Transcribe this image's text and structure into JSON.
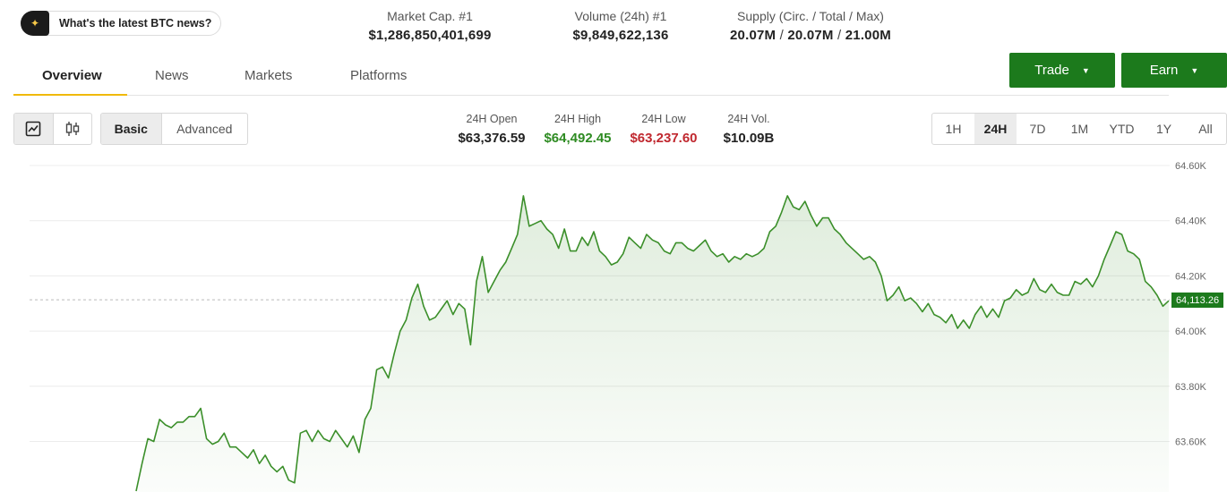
{
  "ai_prompt": {
    "icon": "sparkle-icon",
    "text": "What's the latest BTC news?"
  },
  "stats": [
    {
      "label": "Market Cap. #1",
      "value": "$1,286,850,401,699"
    },
    {
      "label": "Volume (24h) #1",
      "value": "$9,849,622,136"
    },
    {
      "label": "Supply (Circ. / Total / Max)",
      "circ": "20.07M",
      "total": "20.07M",
      "max": "21.00M",
      "sep": "/"
    }
  ],
  "tabs": [
    "Overview",
    "News",
    "Markets",
    "Platforms"
  ],
  "active_tab": "Overview",
  "actions": {
    "trade": "Trade",
    "earn": "Earn",
    "caret": "▼"
  },
  "chart_toggle": {
    "line_icon": "line-chart-icon",
    "candle_icon": "candlestick-icon"
  },
  "mode": {
    "basic": "Basic",
    "advanced": "Advanced",
    "selected": "Basic"
  },
  "ohlc": {
    "open": {
      "label": "24H Open",
      "value": "$63,376.59"
    },
    "high": {
      "label": "24H High",
      "value": "$64,492.45"
    },
    "low": {
      "label": "24H Low",
      "value": "$63,237.60"
    },
    "vol": {
      "label": "24H Vol.",
      "value": "$10.09B"
    }
  },
  "ranges": [
    "1H",
    "24H",
    "7D",
    "1M",
    "YTD",
    "1Y",
    "All"
  ],
  "selected_range": "24H",
  "colors": {
    "accent_green": "#1c7a1c",
    "line": "#3b8f2a",
    "tab_underline": "#f0b90b",
    "high": "#2e8b22",
    "low": "#c0282f"
  },
  "chart_data": {
    "type": "area",
    "ylabels": [
      "64.60K",
      "64.40K",
      "64.20K",
      "64.00K",
      "63.80K",
      "63.60K"
    ],
    "ylim": [
      63400,
      64600
    ],
    "current_price": 64113.26,
    "current_price_label": "64,113.26",
    "values": [
      63420,
      63520,
      63610,
      63600,
      63680,
      63660,
      63650,
      63670,
      63670,
      63690,
      63690,
      63720,
      63610,
      63590,
      63600,
      63630,
      63580,
      63580,
      63560,
      63540,
      63570,
      63520,
      63550,
      63510,
      63490,
      63510,
      63460,
      63450,
      63630,
      63640,
      63600,
      63640,
      63610,
      63600,
      63640,
      63610,
      63580,
      63620,
      63560,
      63680,
      63720,
      63860,
      63870,
      63830,
      63920,
      64000,
      64040,
      64120,
      64170,
      64090,
      64040,
      64050,
      64080,
      64110,
      64060,
      64100,
      64080,
      63950,
      64180,
      64270,
      64140,
      64180,
      64220,
      64250,
      64300,
      64350,
      64490,
      64380,
      64390,
      64400,
      64370,
      64350,
      64300,
      64370,
      64290,
      64290,
      64340,
      64310,
      64360,
      64290,
      64270,
      64240,
      64250,
      64280,
      64340,
      64320,
      64300,
      64350,
      64330,
      64320,
      64290,
      64280,
      64320,
      64320,
      64300,
      64290,
      64310,
      64330,
      64290,
      64270,
      64280,
      64250,
      64270,
      64260,
      64280,
      64270,
      64280,
      64300,
      64360,
      64380,
      64430,
      64490,
      64450,
      64440,
      64470,
      64420,
      64380,
      64410,
      64410,
      64370,
      64350,
      64320,
      64300,
      64280,
      64260,
      64270,
      64250,
      64200,
      64110,
      64130,
      64160,
      64110,
      64120,
      64100,
      64070,
      64100,
      64060,
      64050,
      64030,
      64060,
      64010,
      64040,
      64010,
      64060,
      64090,
      64050,
      64080,
      64050,
      64110,
      64120,
      64150,
      64130,
      64140,
      64190,
      64150,
      64140,
      64170,
      64140,
      64130,
      64130,
      64180,
      64170,
      64190,
      64160,
      64200,
      64260,
      64310,
      64360,
      64350,
      64290,
      64280,
      64260,
      64180,
      64160,
      64130,
      64090,
      64110
    ]
  }
}
